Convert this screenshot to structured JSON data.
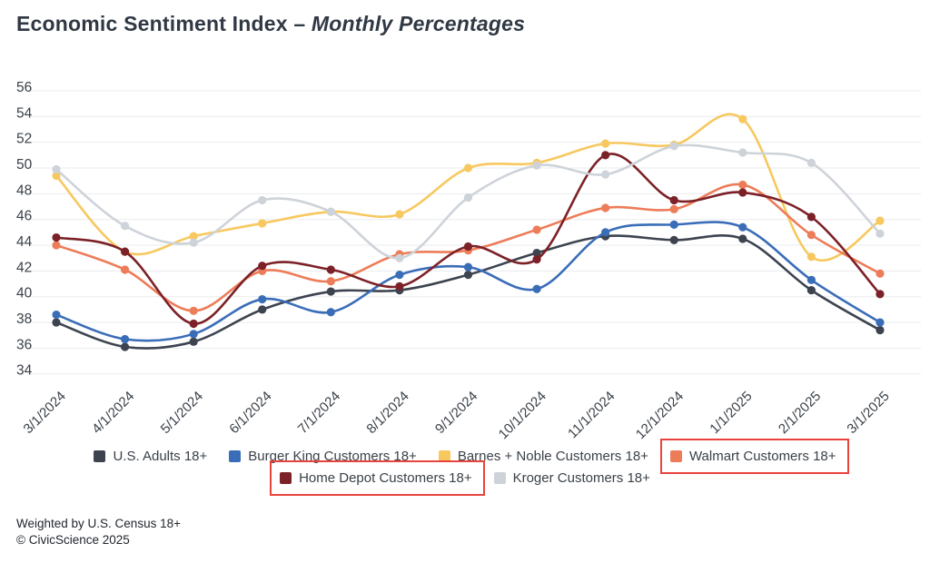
{
  "title": {
    "main": "Economic Sentiment Index – ",
    "emphasis": "Monthly Percentages"
  },
  "footer": {
    "line1": "Weighted by U.S. Census 18+",
    "line2": "© CivicScience 2025"
  },
  "colors": {
    "highlight_box": "#e8433c",
    "grid": "#e9ebee",
    "axis_text": "#3a4148",
    "title_text": "#303844"
  },
  "chart_data": {
    "type": "line",
    "title": "Economic Sentiment Index – Monthly Percentages",
    "xlabel": "",
    "ylabel": "",
    "ylim": [
      34,
      56
    ],
    "ytick_step": 2,
    "grid": true,
    "legend_position": "bottom",
    "x_tick_rotation": -45,
    "categories": [
      "3/1/2024",
      "4/1/2024",
      "5/1/2024",
      "6/1/2024",
      "7/1/2024",
      "8/1/2024",
      "9/1/2024",
      "10/1/2024",
      "11/1/2024",
      "12/1/2024",
      "1/1/2025",
      "2/1/2025",
      "3/1/2025"
    ],
    "series": [
      {
        "name": "U.S. Adults 18+",
        "color": "#3d4450",
        "highlighted": false,
        "values": [
          38.0,
          36.1,
          36.5,
          39.0,
          40.4,
          40.5,
          41.7,
          43.4,
          44.7,
          44.4,
          44.5,
          40.5,
          37.4
        ]
      },
      {
        "name": "Burger King Customers 18+",
        "color": "#3a6db8",
        "highlighted": false,
        "values": [
          38.6,
          36.7,
          37.1,
          39.8,
          38.8,
          41.7,
          42.3,
          40.6,
          45.0,
          45.6,
          45.4,
          41.3,
          38.0
        ]
      },
      {
        "name": "Barnes + Noble Customers 18+",
        "color": "#f7c85f",
        "highlighted": false,
        "values": [
          49.4,
          43.5,
          44.7,
          45.7,
          46.6,
          46.4,
          50.0,
          50.4,
          51.9,
          51.8,
          53.8,
          43.1,
          45.9
        ]
      },
      {
        "name": "Walmart Customers 18+",
        "color": "#ed7c59",
        "highlighted": true,
        "values": [
          44.0,
          42.1,
          38.9,
          42.0,
          41.2,
          43.3,
          43.6,
          45.2,
          46.9,
          46.8,
          48.7,
          44.8,
          41.8
        ]
      },
      {
        "name": "Home Depot Customers 18+",
        "color": "#7c2127",
        "highlighted": true,
        "values": [
          44.6,
          43.5,
          37.9,
          42.4,
          42.1,
          40.8,
          43.9,
          42.9,
          51.0,
          47.5,
          48.1,
          46.2,
          40.2
        ]
      },
      {
        "name": "Kroger Customers 18+",
        "color": "#ced3da",
        "highlighted": false,
        "values": [
          49.9,
          45.5,
          44.2,
          47.5,
          46.6,
          43.0,
          47.7,
          50.2,
          49.5,
          51.7,
          51.2,
          50.4,
          44.9
        ]
      }
    ],
    "legend_rows": [
      [
        0,
        1,
        2,
        3
      ],
      [
        4,
        5
      ]
    ]
  }
}
